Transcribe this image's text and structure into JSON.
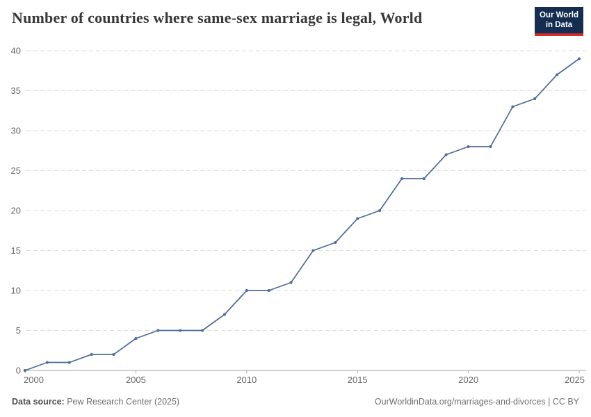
{
  "header": {
    "logo": {
      "line1": "Our World",
      "line2": "in Data",
      "bg": "#142d50",
      "accent": "#d22d28"
    }
  },
  "chart_data": {
    "type": "line",
    "title": "Number of countries where same-sex marriage is legal, World",
    "x": [
      2000,
      2001,
      2002,
      2003,
      2004,
      2005,
      2006,
      2007,
      2008,
      2009,
      2010,
      2011,
      2012,
      2013,
      2014,
      2015,
      2016,
      2017,
      2018,
      2019,
      2020,
      2021,
      2022,
      2023,
      2024,
      2025
    ],
    "series": [
      {
        "name": "World",
        "color": "#4c6a9c",
        "values": [
          0,
          1,
          1,
          2,
          2,
          4,
          5,
          5,
          5,
          7,
          10,
          10,
          11,
          15,
          16,
          19,
          20,
          24,
          24,
          27,
          28,
          28,
          33,
          34,
          37,
          39
        ]
      }
    ],
    "xlim": [
      2000,
      2025
    ],
    "ylim": [
      0,
      40
    ],
    "xticks": [
      2000,
      2005,
      2010,
      2015,
      2020,
      2025
    ],
    "yticks": [
      0,
      5,
      10,
      15,
      20,
      25,
      30,
      35,
      40
    ],
    "grid": "horizontal dashed",
    "grid_color": "#dddddd",
    "axis_color": "#a3a3a3",
    "tick_label_color": "#666666",
    "legend": "none",
    "xlabel": "",
    "ylabel": ""
  },
  "footer": {
    "source_label": "Data source:",
    "source_value": " Pew Research Center (2025)",
    "attribution": "OurWorldinData.org/marriages-and-divorces | CC BY"
  }
}
